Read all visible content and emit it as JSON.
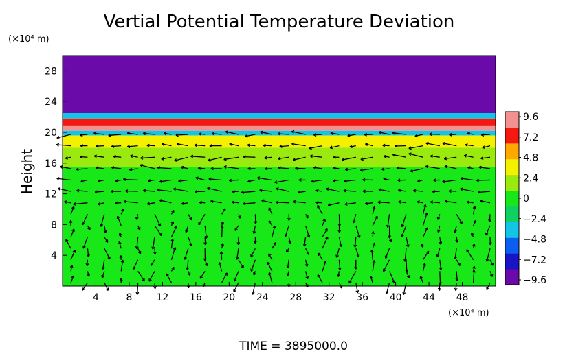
{
  "chart_data": {
    "type": "heatmap",
    "title": "Vertial Potential Temperature Deviation",
    "ylabel": "Height",
    "y_unit": "(×10⁴ m)",
    "x_unit": "(×10⁴ m)",
    "xlim": [
      0,
      52
    ],
    "ylim": [
      0,
      30
    ],
    "x_ticks": [
      4,
      8,
      12,
      16,
      20,
      24,
      28,
      32,
      36,
      40,
      44,
      48
    ],
    "y_ticks": [
      4,
      8,
      12,
      16,
      20,
      24,
      28
    ],
    "colorbar": {
      "ticks": [
        "9.6",
        "7.2",
        "4.8",
        "2.4",
        "0",
        "−2.4",
        "−4.8",
        "−7.2",
        "−9.6"
      ],
      "min": -9.6,
      "max": 9.6,
      "colors": [
        "#6a0aa8",
        "#1a14c8",
        "#0a5ef0",
        "#14c4e6",
        "#10d060",
        "#18e818",
        "#9aea10",
        "#f4f000",
        "#ffa800",
        "#f41810",
        "#f49090"
      ]
    },
    "field_bands": [
      {
        "y0": 22.5,
        "y1": 30,
        "value": -9.6
      },
      {
        "y0": 21.8,
        "y1": 22.5,
        "value": -3.0
      },
      {
        "y0": 20.9,
        "y1": 21.8,
        "value": 8.0
      },
      {
        "y0": 20.2,
        "y1": 20.9,
        "value": 9.0
      },
      {
        "y0": 19.6,
        "y1": 20.2,
        "value": -3.5
      },
      {
        "y0": 18.0,
        "y1": 19.6,
        "value": 3.0
      },
      {
        "y0": 15.5,
        "y1": 18.0,
        "value": 2.2
      },
      {
        "y0": 9.5,
        "y1": 15.5,
        "value": 0.8
      },
      {
        "y0": 0,
        "y1": 9.5,
        "value": 0.0
      }
    ],
    "vector_field": "wind arrows overlaid on grid",
    "grid": false,
    "colorbar_position": "right"
  },
  "footer": {
    "time_label": "TIME  =  3895000.0"
  }
}
